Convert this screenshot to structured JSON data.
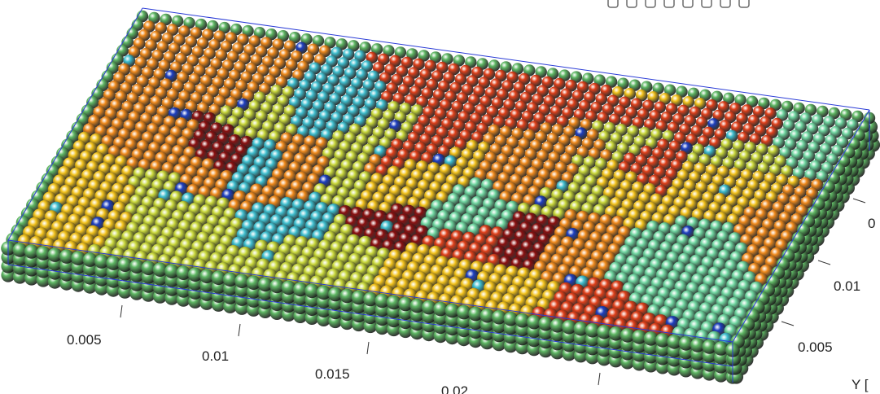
{
  "toolbar": {
    "buttons": [
      {
        "icon": "print-icon"
      },
      {
        "icon": "save-icon"
      },
      {
        "icon": "insert-legend-icon"
      },
      {
        "icon": "rotate-3d-icon"
      },
      {
        "icon": "pan-hand-icon"
      },
      {
        "icon": "zoom-in-icon"
      },
      {
        "icon": "zoom-out-icon"
      },
      {
        "icon": "home-icon"
      }
    ]
  },
  "chart_data": {
    "type": "scatter3d",
    "title": "",
    "x_axis": {
      "label": "",
      "ticks": [
        "0.005",
        "0.01",
        "0.015",
        "0.02"
      ]
    },
    "y_axis": {
      "label": "Y [",
      "ticks": [
        "0.005",
        "0.01",
        "0"
      ]
    },
    "grid": false,
    "colormap": [
      "#1e3fbf",
      "#3fbfcf",
      "#6fd6a0",
      "#c9d83a",
      "#f2c21b",
      "#f08a1c",
      "#e0401a",
      "#8a1010"
    ],
    "description_fields": {
      "border_particle_color": "#5fb864",
      "particle_grid": {
        "cols": 62,
        "rows": 27
      }
    }
  }
}
